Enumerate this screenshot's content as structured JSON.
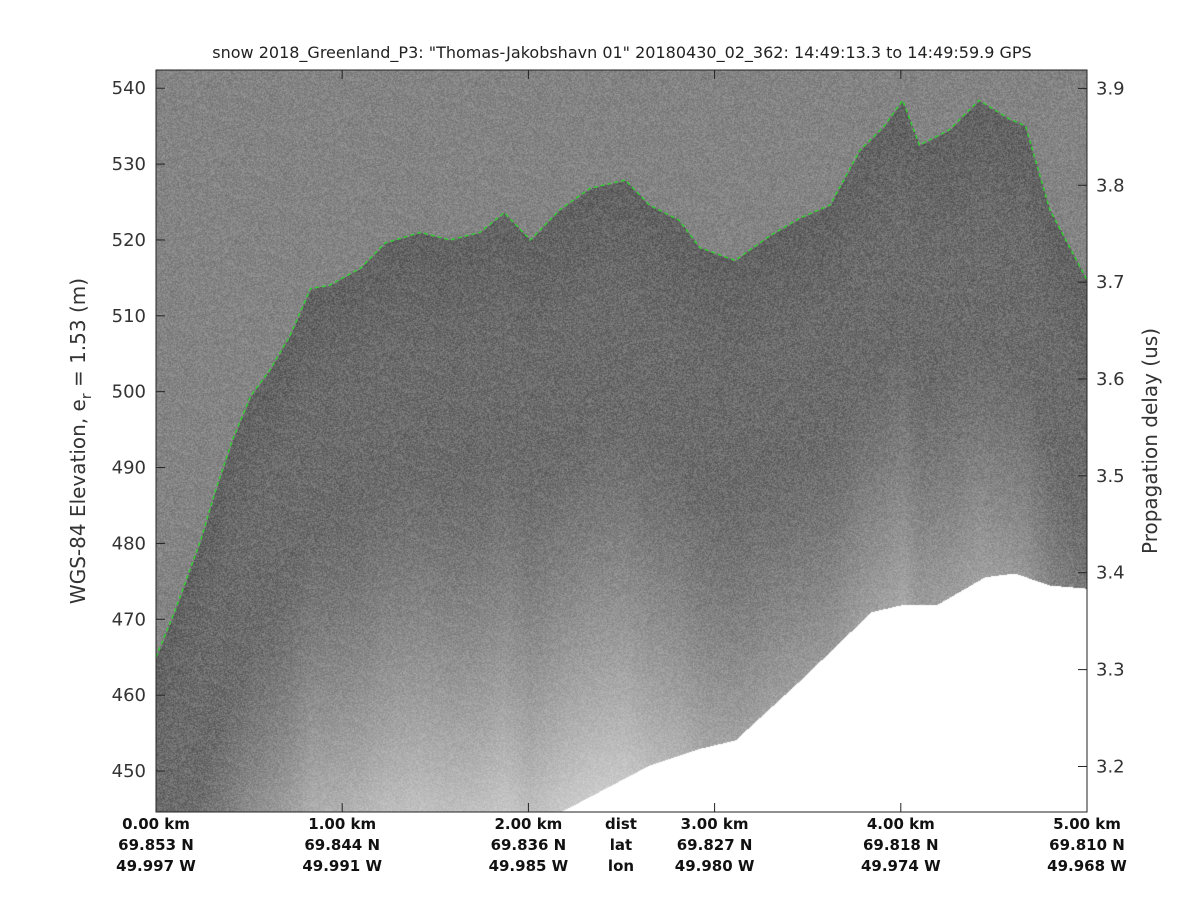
{
  "chart_data": {
    "type": "heatmap",
    "title": "snow 2018_Greenland_P3: \"Thomas-Jakobshavn 01\"  20180430_02_362: 14:49:13.3 to 14:49:59.9 GPS",
    "ylabel_left": "WGS-84 Elevation, e",
    "ylabel_left_sub": "r",
    "ylabel_left_suffix": " = 1.53 (m)",
    "ylabel_right": "Propagation delay (us)",
    "ylim_left": [
      444.6,
      542.4
    ],
    "yticks_left": [
      "450",
      "460",
      "470",
      "480",
      "490",
      "500",
      "510",
      "520",
      "530",
      "540"
    ],
    "ylim_right": [
      3.919,
      3.153
    ],
    "yticks_right": [
      "3.2",
      "3.3",
      "3.4",
      "3.5",
      "3.6",
      "3.7",
      "3.8",
      "3.9"
    ],
    "xlim_km": [
      0,
      5
    ],
    "grid": false,
    "colormap": "gray",
    "surface_color": "#33cc33",
    "x_rows": {
      "dist": [
        "0.00 km",
        "1.00 km",
        "2.00 km",
        "3.00 km",
        "4.00 km",
        "5.00 km"
      ],
      "lat": [
        "69.853 N",
        "69.844 N",
        "69.836 N",
        "69.827 N",
        "69.818 N",
        "69.810 N"
      ],
      "lon": [
        "49.997 W",
        "49.991 W",
        "49.985 W",
        "49.980 W",
        "49.974 W",
        "49.968 W"
      ],
      "row_labels": [
        "dist",
        "lat",
        "lon"
      ]
    },
    "surface": {
      "x_km": [
        0,
        0.1,
        0.24,
        0.32,
        0.41,
        0.51,
        0.61,
        0.72,
        0.83,
        0.93,
        1.1,
        1.23,
        1.42,
        1.58,
        1.74,
        1.87,
        2.01,
        2.17,
        2.33,
        2.52,
        2.65,
        2.81,
        2.92,
        3.11,
        3.3,
        3.46,
        3.62,
        3.78,
        3.91,
        4.01,
        4.1,
        4.26,
        4.42,
        4.58,
        4.67,
        4.8,
        5.0
      ],
      "elevation_m": [
        465,
        471,
        480.4,
        487,
        493.6,
        499.5,
        502.8,
        507.4,
        513.6,
        514,
        516.3,
        519.6,
        521,
        520,
        521,
        523.6,
        520,
        524,
        526.8,
        527.9,
        524.6,
        522.6,
        519,
        517.3,
        520.6,
        522.9,
        524.6,
        531.8,
        535,
        538.4,
        532.5,
        534.5,
        538.4,
        536,
        535,
        524,
        514.7
      ]
    },
    "no_data_boundary": {
      "x_km": [
        2.17,
        2.65,
        2.92,
        3.11,
        3.46,
        3.84,
        4.0,
        4.19,
        4.45,
        4.61,
        4.8,
        5.0
      ],
      "elevation_m": [
        444.6,
        450.8,
        453,
        454.1,
        462,
        471,
        471.9,
        471.9,
        475.6,
        476.1,
        474.5,
        474.1
      ]
    }
  }
}
